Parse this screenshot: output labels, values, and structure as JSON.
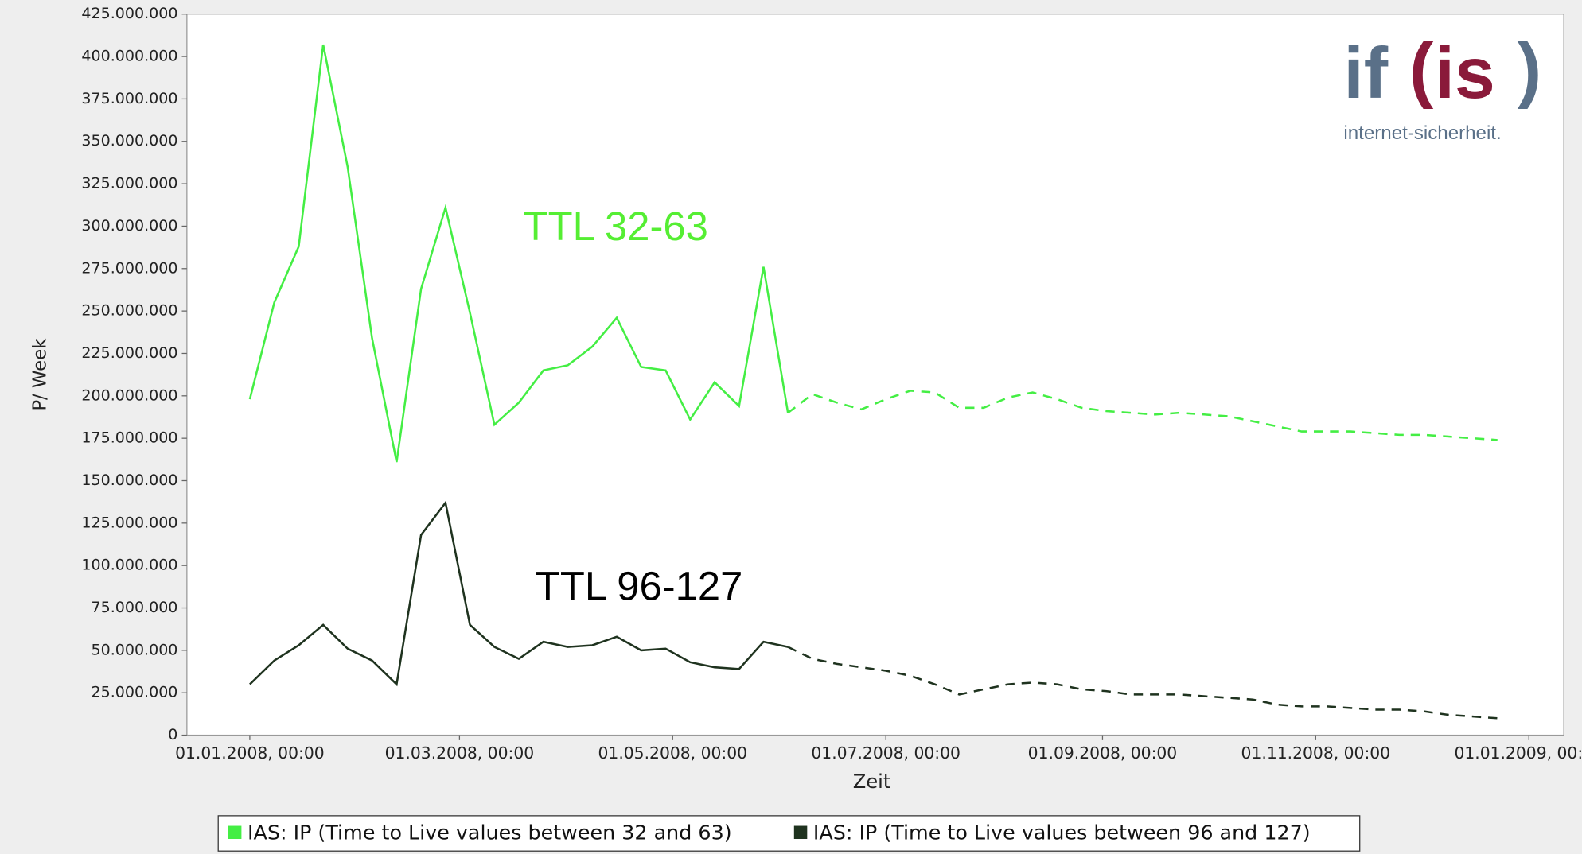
{
  "chart_data": {
    "type": "line",
    "x_label": "Zeit",
    "y_label": "P/ Week",
    "annotations": [
      {
        "text": "TTL 32-63",
        "color": "#55ee33"
      },
      {
        "text": "TTL 96-127",
        "color": "#000000"
      }
    ],
    "logo": {
      "parts": [
        "if",
        "(",
        "is",
        ")"
      ],
      "tagline": "internet-sicherheit."
    },
    "x": [
      "2008-01-01",
      "2008-01-08",
      "2008-01-15",
      "2008-01-22",
      "2008-01-29",
      "2008-02-05",
      "2008-02-12",
      "2008-02-19",
      "2008-02-26",
      "2008-03-04",
      "2008-03-11",
      "2008-03-18",
      "2008-03-25",
      "2008-04-01",
      "2008-04-08",
      "2008-04-15",
      "2008-04-22",
      "2008-04-29",
      "2008-05-06",
      "2008-05-13",
      "2008-05-20",
      "2008-05-27",
      "2008-06-03",
      "2008-06-10",
      "2008-06-17",
      "2008-06-24",
      "2008-07-01",
      "2008-07-08",
      "2008-07-15",
      "2008-07-22",
      "2008-07-29",
      "2008-08-05",
      "2008-08-12",
      "2008-08-19",
      "2008-08-26",
      "2008-09-02",
      "2008-09-09",
      "2008-09-16",
      "2008-09-23",
      "2008-09-30",
      "2008-10-07",
      "2008-10-14",
      "2008-10-21",
      "2008-10-28",
      "2008-11-04",
      "2008-11-11",
      "2008-11-18",
      "2008-11-25",
      "2008-12-02",
      "2008-12-09",
      "2008-12-16",
      "2008-12-23"
    ],
    "dashed_from": "2008-06-03",
    "series": [
      {
        "name": "IAS: IP (Time to Live values between 32 and 63)",
        "color": "#44ee44",
        "values": [
          198000000,
          255000000,
          288000000,
          407000000,
          335000000,
          234000000,
          161000000,
          263000000,
          311000000,
          249000000,
          183000000,
          196000000,
          215000000,
          218000000,
          229000000,
          246000000,
          217000000,
          215000000,
          186000000,
          208000000,
          194000000,
          276000000,
          190000000,
          201000000,
          196000000,
          192000000,
          198000000,
          203000000,
          202000000,
          193000000,
          193000000,
          199000000,
          202000000,
          198000000,
          193000000,
          191000000,
          190000000,
          189000000,
          190000000,
          189000000,
          188000000,
          185000000,
          182000000,
          179000000,
          179000000,
          179000000,
          178000000,
          177000000,
          177000000,
          176000000,
          175000000,
          174000000
        ]
      },
      {
        "name": "IAS: IP (Time to Live values between 96 and 127)",
        "color": "#1f331f",
        "values": [
          30000000,
          44000000,
          53000000,
          65000000,
          51000000,
          44000000,
          30000000,
          118000000,
          137000000,
          65000000,
          52000000,
          45000000,
          55000000,
          52000000,
          53000000,
          58000000,
          50000000,
          51000000,
          43000000,
          40000000,
          39000000,
          55000000,
          52000000,
          45000000,
          42000000,
          40000000,
          38000000,
          35000000,
          30000000,
          24000000,
          27000000,
          30000000,
          31000000,
          30000000,
          27000000,
          26000000,
          24000000,
          24000000,
          24000000,
          23000000,
          22000000,
          21000000,
          18000000,
          17000000,
          17000000,
          16000000,
          15000000,
          15000000,
          14000000,
          12000000,
          11000000,
          10000000
        ]
      }
    ],
    "xlim": [
      "2007-12-14",
      "2009-01-11"
    ],
    "xticks": [
      {
        "value": "2008-01-01",
        "label": "01.01.2008, 00:00"
      },
      {
        "value": "2008-03-01",
        "label": "01.03.2008, 00:00"
      },
      {
        "value": "2008-05-01",
        "label": "01.05.2008, 00:00"
      },
      {
        "value": "2008-07-01",
        "label": "01.07.2008, 00:00"
      },
      {
        "value": "2008-09-01",
        "label": "01.09.2008, 00:00"
      },
      {
        "value": "2008-11-01",
        "label": "01.11.2008, 00:00"
      },
      {
        "value": "2009-01-01",
        "label": "01.01.2009, 00:00"
      }
    ],
    "ylim": [
      0,
      425000000
    ],
    "yticks": [
      0,
      {
        "value": 25000000,
        "label": "25.000.000"
      },
      {
        "value": 50000000,
        "label": "50.000.000"
      },
      {
        "value": 75000000,
        "label": "75.000.000"
      },
      {
        "value": 100000000,
        "label": "100.000.000"
      },
      {
        "value": 125000000,
        "label": "125.000.000"
      },
      {
        "value": 150000000,
        "label": "150.000.000"
      },
      {
        "value": 175000000,
        "label": "175.000.000"
      },
      {
        "value": 200000000,
        "label": "200.000.000"
      },
      {
        "value": 225000000,
        "label": "225.000.000"
      },
      {
        "value": 250000000,
        "label": "250.000.000"
      },
      {
        "value": 275000000,
        "label": "275.000.000"
      },
      {
        "value": 300000000,
        "label": "300.000.000"
      },
      {
        "value": 325000000,
        "label": "325.000.000"
      },
      {
        "value": 350000000,
        "label": "350.000.000"
      },
      {
        "value": 375000000,
        "label": "375.000.000"
      },
      {
        "value": 400000000,
        "label": "400.000.000"
      },
      {
        "value": 425000000,
        "label": "425.000.000"
      }
    ],
    "grid": false,
    "legend": "bottom"
  }
}
